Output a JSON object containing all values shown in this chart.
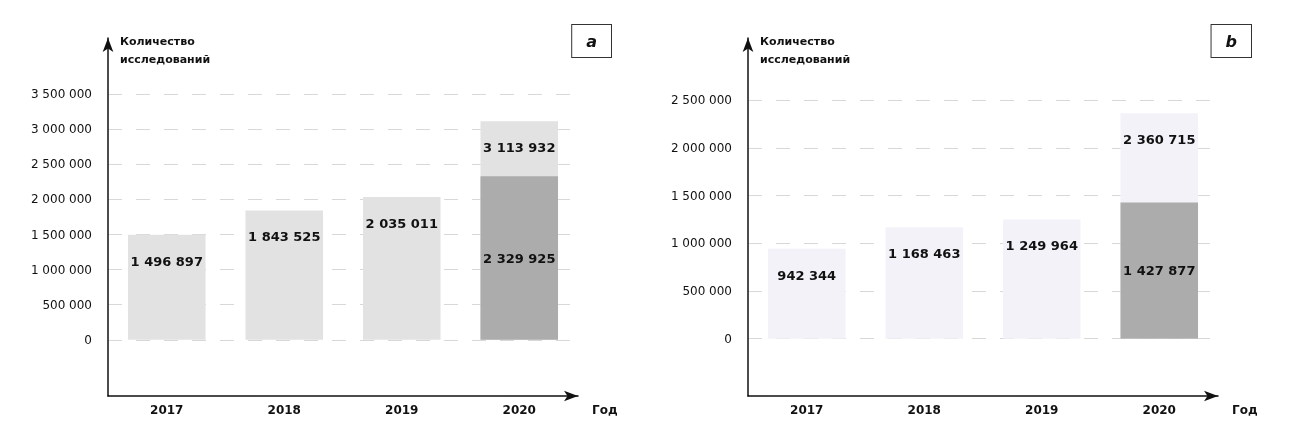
{
  "chart_data": [
    {
      "type": "bar",
      "categories": [
        "2017",
        "2018",
        "2019",
        "2020"
      ],
      "xlabel": "Год",
      "ylabel": "Количество\nисследований",
      "annotations": [
        "a"
      ],
      "grid": "y",
      "ylim": [
        -800000,
        4300000
      ],
      "yticks": [
        {
          "value": 0,
          "label": "0"
        },
        {
          "value": 500000,
          "label": "500 000"
        },
        {
          "value": 1000000,
          "label": "1 000 000"
        },
        {
          "value": 1500000,
          "label": "1 500 000"
        },
        {
          "value": 2000000,
          "label": "2 000 000"
        },
        {
          "value": 2500000,
          "label": "2 500 000"
        },
        {
          "value": 3000000,
          "label": "3 000 000"
        },
        {
          "value": 3500000,
          "label": "3 500 000"
        }
      ],
      "series": [
        {
          "color": "#e2e2e2",
          "values": [
            1496897,
            1843525,
            2035011,
            3113932
          ],
          "value_labels": [
            "1 496 897",
            "1 843 525",
            "2 035 011",
            "3 113 932"
          ]
        },
        {
          "color": "#acacac",
          "values": [
            null,
            null,
            null,
            2329925
          ],
          "value_labels": [
            null,
            null,
            null,
            "2 329 925"
          ]
        }
      ]
    },
    {
      "type": "bar",
      "categories": [
        "2017",
        "2018",
        "2019",
        "2020"
      ],
      "xlabel": "Год",
      "ylabel": "Количество\nисследований",
      "annotations": [
        "b"
      ],
      "grid": "y",
      "ylim": [
        -600000,
        3150000
      ],
      "yticks": [
        {
          "value": 0,
          "label": "0"
        },
        {
          "value": 500000,
          "label": "500 000"
        },
        {
          "value": 1000000,
          "label": "1 000 000"
        },
        {
          "value": 1500000,
          "label": "1 500 000"
        },
        {
          "value": 2000000,
          "label": "2 000 000"
        },
        {
          "value": 2500000,
          "label": "2 500 000"
        }
      ],
      "series": [
        {
          "color": "#f3f2f9",
          "values": [
            942344,
            1168463,
            1249964,
            2360715
          ],
          "value_labels": [
            "942 344",
            "1 168 463",
            "1 249 964",
            "2 360 715"
          ]
        },
        {
          "color": "#acacac",
          "values": [
            null,
            null,
            null,
            1427877
          ],
          "value_labels": [
            null,
            null,
            null,
            "1 427 877"
          ]
        }
      ]
    }
  ]
}
